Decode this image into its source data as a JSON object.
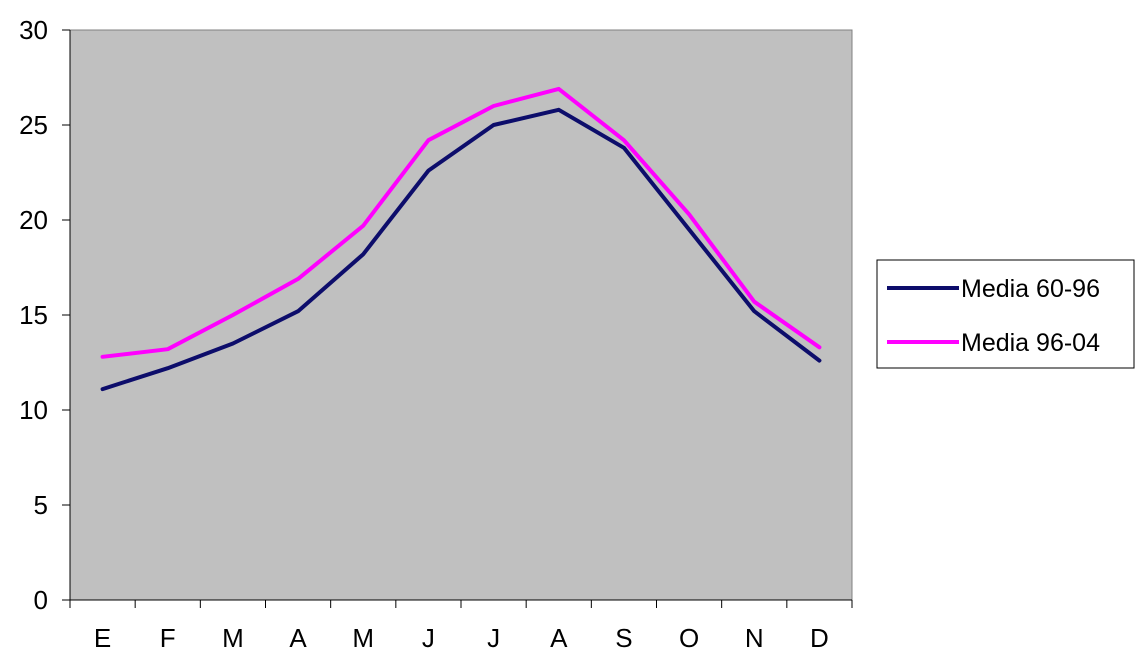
{
  "chart_data": {
    "type": "line",
    "categories": [
      "E",
      "F",
      "M",
      "A",
      "M",
      "J",
      "J",
      "A",
      "S",
      "O",
      "N",
      "D"
    ],
    "series": [
      {
        "name": "Media 60-96",
        "color": "#0d0d6b",
        "values": [
          11.1,
          12.2,
          13.5,
          15.2,
          18.2,
          22.6,
          25.0,
          25.8,
          23.8,
          19.5,
          15.2,
          12.6
        ]
      },
      {
        "name": "Media 96-04",
        "color": "#ff00ff",
        "values": [
          12.8,
          13.2,
          15.0,
          16.9,
          19.7,
          24.2,
          26.0,
          26.9,
          24.2,
          20.3,
          15.7,
          13.3
        ]
      }
    ],
    "ylim": [
      0,
      30
    ],
    "yticks": [
      0,
      5,
      10,
      15,
      20,
      25,
      30
    ],
    "title": "",
    "xlabel": "",
    "ylabel": "",
    "grid": false,
    "legend_position": "right",
    "plot_background": "#c0c0c0"
  }
}
